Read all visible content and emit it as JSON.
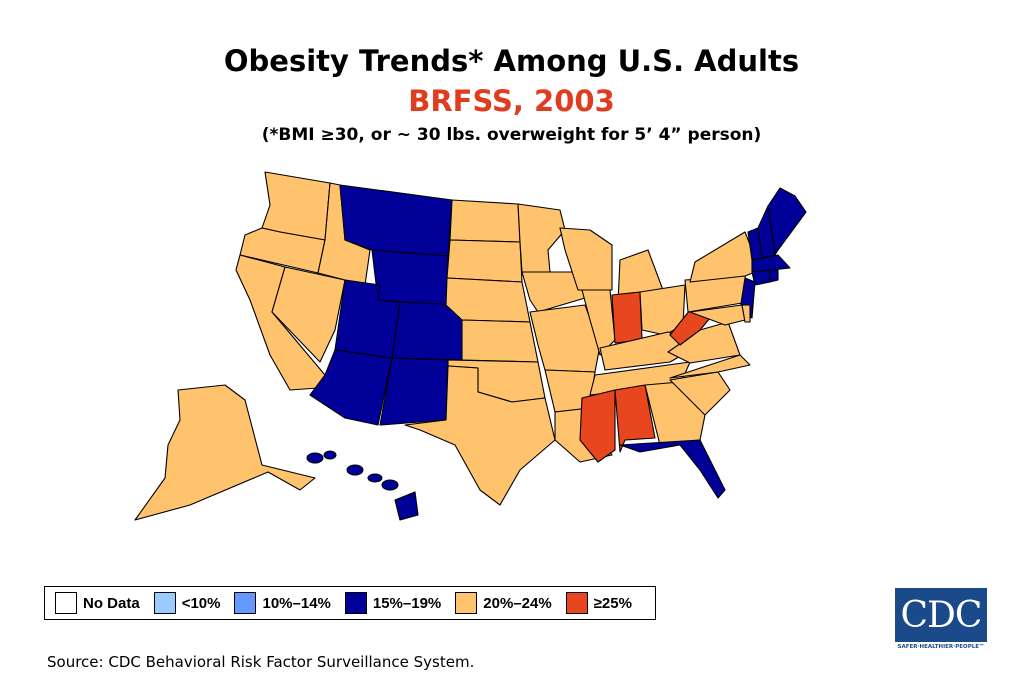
{
  "title": "Obesity Trends* Among U.S. Adults",
  "subtitle": "BRFSS, 2003",
  "note": "(*BMI ≥30, or ~ 30 lbs. overweight for 5’ 4” person)",
  "legend": [
    {
      "label": "No Data",
      "color": "#ffffff"
    },
    {
      "label": "<10%",
      "color": "#99ccff"
    },
    {
      "label": "10%–14%",
      "color": "#6699ff"
    },
    {
      "label": "15%–19%",
      "color": "#000099"
    },
    {
      "label": "20%–24%",
      "color": "#ffc36e"
    },
    {
      "label": "≥25%",
      "color": "#e8461e"
    }
  ],
  "source": "Source: CDC Behavioral Risk Factor Surveillance System.",
  "logo": {
    "text": "CDC",
    "tagline": "SAFER·HEALTHIER·PEOPLE™"
  },
  "map": {
    "states_15_19": [
      "Montana",
      "Wyoming",
      "Utah",
      "Colorado",
      "Arizona",
      "New Mexico",
      "Hawaii",
      "Florida",
      "Vermont",
      "New Hampshire",
      "Maine",
      "Massachusetts",
      "Connecticut",
      "Rhode Island",
      "New Jersey"
    ],
    "states_20_24": [
      "Washington",
      "Oregon",
      "California",
      "Nevada",
      "Idaho",
      "North Dakota",
      "South Dakota",
      "Nebraska",
      "Kansas",
      "Oklahoma",
      "Texas",
      "Minnesota",
      "Iowa",
      "Missouri",
      "Arkansas",
      "Louisiana",
      "Wisconsin",
      "Illinois",
      "Michigan",
      "Ohio",
      "Kentucky",
      "Tennessee",
      "Georgia",
      "South Carolina",
      "North Carolina",
      "Virginia",
      "Maryland",
      "Delaware",
      "Pennsylvania",
      "New York",
      "Alaska"
    ],
    "states_25_plus": [
      "Indiana",
      "West Virginia",
      "Mississippi",
      "Alabama"
    ]
  }
}
